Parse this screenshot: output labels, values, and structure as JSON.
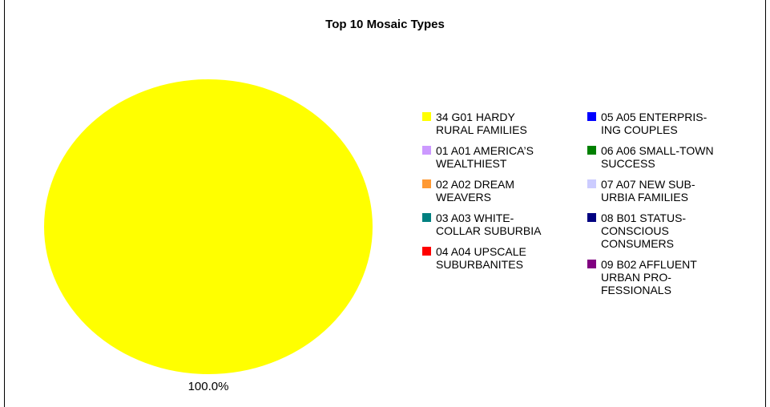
{
  "chart_data": {
    "type": "pie",
    "title": "Top 10 Mosaic Types",
    "slices": [
      {
        "label": "34 G01 HARDY\nRURAL FAMILIES",
        "value": 100.0,
        "color": "#ffff00"
      },
      {
        "label": "01 A01 AMERICA’S\nWEALTHIEST",
        "value": 0,
        "color": "#cc99ff"
      },
      {
        "label": "02 A02 DREAM\nWEAVERS",
        "value": 0,
        "color": "#ff9933"
      },
      {
        "label": "03 A03 WHITE-\nCOLLAR SUBURBIA",
        "value": 0,
        "color": "#008080"
      },
      {
        "label": "04 A04 UPSCALE\nSUBURBANITES",
        "value": 0,
        "color": "#ff0000"
      },
      {
        "label": "05 A05 ENTERPRIS-\nING COUPLES",
        "value": 0,
        "color": "#0000ff"
      },
      {
        "label": "06 A06 SMALL-TOWN\nSUCCESS",
        "value": 0,
        "color": "#008000"
      },
      {
        "label": "07 A07 NEW SUB-\nURBIA FAMILIES",
        "value": 0,
        "color": "#ccccff"
      },
      {
        "label": "08 B01 STATUS-\nCONSCIOUS\nCONSUMERS",
        "value": 0,
        "color": "#000080"
      },
      {
        "label": "09 B02 AFFLUENT\nURBAN PRO-\nFESSIONALS",
        "value": 0,
        "color": "#800080"
      }
    ],
    "data_labels": [
      "100.0%"
    ],
    "legend_position": "right"
  }
}
